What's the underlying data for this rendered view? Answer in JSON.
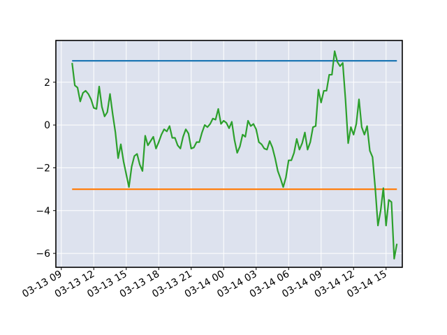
{
  "chart_data": {
    "type": "line",
    "title": "",
    "xlabel": "",
    "ylabel": "",
    "x_range": [
      "2024-03-13 08:30",
      "2024-03-14 16:30"
    ],
    "ylim": [
      -6.65,
      3.95
    ],
    "grid": true,
    "background": "#dde2ee",
    "x_ticks": [
      {
        "x": "2024-03-13 09:00",
        "label": "03-13 09"
      },
      {
        "x": "2024-03-13 12:00",
        "label": "03-13 12"
      },
      {
        "x": "2024-03-13 15:00",
        "label": "03-13 15"
      },
      {
        "x": "2024-03-13 18:00",
        "label": "03-13 18"
      },
      {
        "x": "2024-03-13 21:00",
        "label": "03-13 21"
      },
      {
        "x": "2024-03-14 00:00",
        "label": "03-14 00"
      },
      {
        "x": "2024-03-14 03:00",
        "label": "03-14 03"
      },
      {
        "x": "2024-03-14 06:00",
        "label": "03-14 06"
      },
      {
        "x": "2024-03-14 09:00",
        "label": "03-14 09"
      },
      {
        "x": "2024-03-14 12:00",
        "label": "03-14 12"
      },
      {
        "x": "2024-03-14 15:00",
        "label": "03-14 15"
      }
    ],
    "y_ticks": [
      {
        "y": 2,
        "label": "2"
      },
      {
        "y": 0,
        "label": "0"
      },
      {
        "y": -2,
        "label": "−2"
      },
      {
        "y": -4,
        "label": "−4"
      },
      {
        "y": -6,
        "label": "−6"
      }
    ],
    "series": [
      {
        "color": "#1f77b4",
        "x": [
          "2024-03-13 10:00",
          "2024-03-14 16:00"
        ],
        "values": [
          3.0,
          3.0
        ]
      },
      {
        "color": "#ff7f0e",
        "x": [
          "2024-03-13 10:00",
          "2024-03-14 16:00"
        ],
        "values": [
          -3.0,
          -3.0
        ]
      },
      {
        "color": "#2ca02c",
        "x_start": "2024-03-13 10:00",
        "x_step_minutes": 15,
        "values": [
          2.9,
          1.85,
          1.75,
          1.1,
          1.5,
          1.6,
          1.45,
          1.2,
          0.8,
          0.75,
          1.8,
          0.85,
          0.4,
          0.6,
          1.45,
          0.5,
          -0.35,
          -1.55,
          -0.9,
          -1.7,
          -2.3,
          -2.9,
          -1.95,
          -1.45,
          -1.35,
          -1.85,
          -2.15,
          -0.5,
          -0.95,
          -0.75,
          -0.55,
          -1.1,
          -0.8,
          -0.45,
          -0.2,
          -0.3,
          -0.05,
          -0.6,
          -0.6,
          -0.95,
          -1.1,
          -0.55,
          -0.2,
          -0.4,
          -1.1,
          -1.05,
          -0.8,
          -0.8,
          -0.35,
          0.0,
          -0.1,
          0.05,
          0.3,
          0.25,
          0.75,
          0.05,
          0.2,
          0.1,
          -0.15,
          0.15,
          -0.7,
          -1.3,
          -1.0,
          -0.45,
          -0.55,
          0.2,
          -0.05,
          0.05,
          -0.2,
          -0.8,
          -0.9,
          -1.1,
          -1.15,
          -0.75,
          -1.05,
          -1.55,
          -2.15,
          -2.5,
          -2.9,
          -2.45,
          -1.65,
          -1.65,
          -1.3,
          -0.65,
          -1.15,
          -0.85,
          -0.35,
          -1.15,
          -0.8,
          -0.1,
          -0.05,
          1.65,
          1.05,
          1.6,
          1.6,
          2.35,
          2.35,
          3.45,
          2.95,
          2.75,
          2.9,
          1.2,
          -0.85,
          -0.1,
          -0.45,
          0.05,
          1.2,
          -0.1,
          -0.45,
          -0.05,
          -1.2,
          -1.5,
          -2.95,
          -4.7,
          -4.0,
          -2.95,
          -4.7,
          -3.5,
          -3.6,
          -6.25,
          -5.55
        ]
      }
    ]
  }
}
